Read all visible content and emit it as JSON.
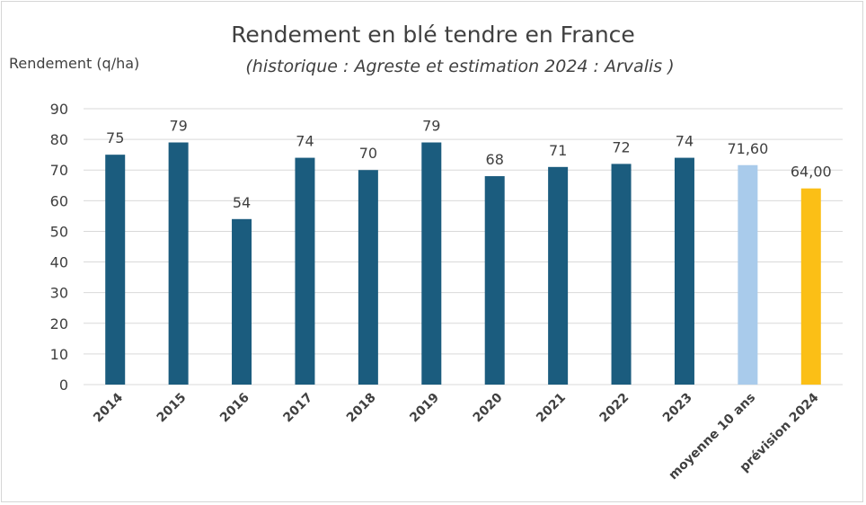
{
  "chart_data": {
    "type": "bar",
    "title": "Rendement en blé tendre en France",
    "subtitle": "(historique : Agreste et estimation 2024 : Arvalis )",
    "xlabel": "",
    "ylabel": "Rendement (q/ha)",
    "ylim": [
      0,
      90
    ],
    "yticks": [
      0,
      10,
      20,
      30,
      40,
      50,
      60,
      70,
      80,
      90
    ],
    "grid": true,
    "legend": "none",
    "categories": [
      "2014",
      "2015",
      "2016",
      "2017",
      "2018",
      "2019",
      "2020",
      "2021",
      "2022",
      "2023",
      "moyenne 10 ans",
      "prévision 2024"
    ],
    "values": [
      75,
      79,
      54,
      74,
      70,
      79,
      68,
      71,
      72,
      74,
      71.6,
      64
    ],
    "data_labels": [
      "75",
      "79",
      "54",
      "74",
      "70",
      "79",
      "68",
      "71",
      "72",
      "74",
      "71,60",
      "64,00"
    ],
    "colors": [
      "#1b5c7e",
      "#1b5c7e",
      "#1b5c7e",
      "#1b5c7e",
      "#1b5c7e",
      "#1b5c7e",
      "#1b5c7e",
      "#1b5c7e",
      "#1b5c7e",
      "#1b5c7e",
      "#a9cbeb",
      "#fbbf16"
    ],
    "gridline_color": "#d9d9d9",
    "text_color": "#404040"
  }
}
